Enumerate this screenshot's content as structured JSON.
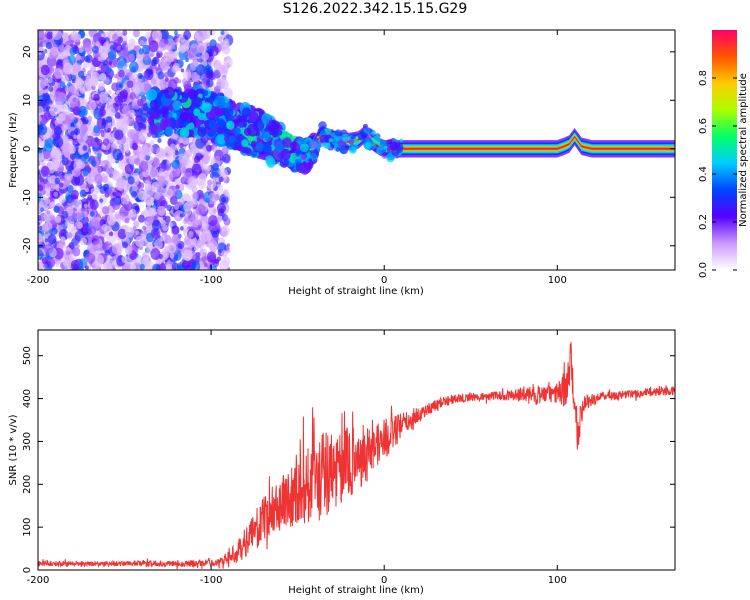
{
  "figure": {
    "title": "S126.2022.342.15.15.G29"
  },
  "chart_data": [
    {
      "type": "heatmap",
      "title": "",
      "xlabel": "Height of straight line (km)",
      "ylabel": "Frequency (Hz)",
      "xlim": [
        -200,
        168
      ],
      "ylim": [
        -25,
        24.5
      ],
      "x_ticks": [
        "-200",
        "-100",
        "0",
        "100"
      ],
      "y_ticks": [
        "-20",
        "-10",
        "0",
        "10",
        "20"
      ],
      "grid": false,
      "colorbar": {
        "label": "Normalized spectral amplitude",
        "range": [
          0,
          1
        ],
        "ticks": [
          "0.0",
          "0.2",
          "0.4",
          "0.6",
          "0.8"
        ],
        "colors": [
          "#ffffff",
          "#cc99ff",
          "#5500ff",
          "#0044ff",
          "#00ccff",
          "#00ff66",
          "#aaff00",
          "#ffcc00",
          "#ff5500",
          "#ff0066"
        ]
      },
      "scatter_spread": {
        "x_range": [
          -200,
          -90
        ],
        "freq_range": [
          -25,
          24
        ]
      },
      "ridge": {
        "x": [
          -120,
          -105,
          -95,
          -88,
          -80,
          -72,
          -65,
          -58,
          -52,
          -47,
          -43,
          -40,
          -36,
          -30,
          -25,
          -20,
          -15,
          -11,
          -7,
          -3,
          0,
          5,
          10,
          20,
          40,
          60,
          75,
          85,
          95,
          100,
          104,
          107,
          110,
          114,
          120,
          140,
          168
        ],
        "freq": [
          7.5,
          7.5,
          6,
          5,
          4,
          3,
          1.5,
          0,
          -1,
          -1.5,
          -1,
          1,
          3,
          2,
          1.5,
          1.5,
          1.8,
          3,
          1.5,
          0.5,
          0,
          0,
          0,
          0,
          0,
          0,
          0,
          0,
          0,
          0,
          0.5,
          1,
          2.5,
          0.5,
          0,
          0,
          0
        ]
      }
    },
    {
      "type": "line",
      "title": "",
      "xlabel": "Height of straight line (km)",
      "ylabel": "SNR (10 * v/v)",
      "xlim": [
        -200,
        168
      ],
      "ylim": [
        0,
        560
      ],
      "x_ticks": [
        "-200",
        "-100",
        "0",
        "100"
      ],
      "y_ticks": [
        "0",
        "100",
        "200",
        "300",
        "400",
        "500"
      ],
      "grid": false,
      "series": [
        {
          "color": "#ee3333",
          "x": [
            -200,
            -150,
            -110,
            -95,
            -85,
            -75,
            -65,
            -55,
            -45,
            -35,
            -25,
            -15,
            -5,
            5,
            15,
            25,
            35,
            45,
            60,
            75,
            85,
            95,
            100,
            104,
            106,
            108,
            110,
            112,
            115,
            125,
            140,
            155,
            168
          ],
          "values": [
            15,
            15,
            15,
            18,
            40,
            90,
            140,
            170,
            200,
            220,
            240,
            260,
            290,
            320,
            350,
            375,
            395,
            402,
            405,
            408,
            410,
            410,
            412,
            420,
            450,
            470,
            400,
            330,
            390,
            405,
            410,
            415,
            420
          ],
          "noise": [
            6,
            6,
            8,
            8,
            25,
            45,
            60,
            70,
            95,
            110,
            90,
            80,
            60,
            40,
            25,
            15,
            10,
            10,
            10,
            12,
            25,
            20,
            25,
            40,
            70,
            70,
            60,
            40,
            20,
            10,
            10,
            10,
            12
          ]
        }
      ]
    }
  ]
}
